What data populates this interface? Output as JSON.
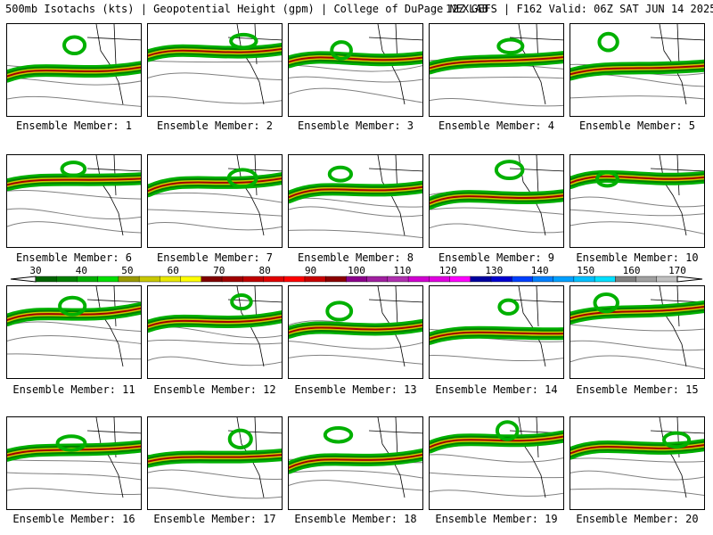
{
  "header": {
    "left": "500mb Isotachs (kts) | Geopotential Height (gpm) | College of DuPage NEXLAB",
    "right": "12Z GEFS | F162 Valid: 06Z SAT JUN 14 2025"
  },
  "colorbar": {
    "labels": [
      "30",
      "40",
      "50",
      "60",
      "70",
      "80",
      "90",
      "100",
      "110",
      "120",
      "130",
      "140",
      "150",
      "160",
      "170"
    ],
    "colors": [
      "#006400",
      "#008000",
      "#00b000",
      "#00e000",
      "#9a9a00",
      "#c8c800",
      "#e8e800",
      "#ffff00",
      "#800000",
      "#a00000",
      "#c00000",
      "#e00000",
      "#ff0000",
      "#c80000",
      "#8b0000",
      "#8b008b",
      "#a020a0",
      "#b030b0",
      "#d000d0",
      "#e000e0",
      "#ff00ff",
      "#0000a0",
      "#0000d0",
      "#0040ff",
      "#0080ff",
      "#00a0ff",
      "#00c0ff",
      "#00e0ff",
      "#808080",
      "#a0a0a0",
      "#c0c0c0"
    ]
  },
  "members": [
    {
      "label": "Ensemble Member: 1"
    },
    {
      "label": "Ensemble Member: 2"
    },
    {
      "label": "Ensemble Member: 3"
    },
    {
      "label": "Ensemble Member: 4"
    },
    {
      "label": "Ensemble Member: 5"
    },
    {
      "label": "Ensemble Member: 6"
    },
    {
      "label": "Ensemble Member: 7"
    },
    {
      "label": "Ensemble Member: 8"
    },
    {
      "label": "Ensemble Member: 9"
    },
    {
      "label": "Ensemble Member: 10"
    },
    {
      "label": "Ensemble Member: 11"
    },
    {
      "label": "Ensemble Member: 12"
    },
    {
      "label": "Ensemble Member: 13"
    },
    {
      "label": "Ensemble Member: 14"
    },
    {
      "label": "Ensemble Member: 15"
    },
    {
      "label": "Ensemble Member: 16"
    },
    {
      "label": "Ensemble Member: 17"
    },
    {
      "label": "Ensemble Member: 18"
    },
    {
      "label": "Ensemble Member: 19"
    },
    {
      "label": "Ensemble Member: 20"
    }
  ]
}
